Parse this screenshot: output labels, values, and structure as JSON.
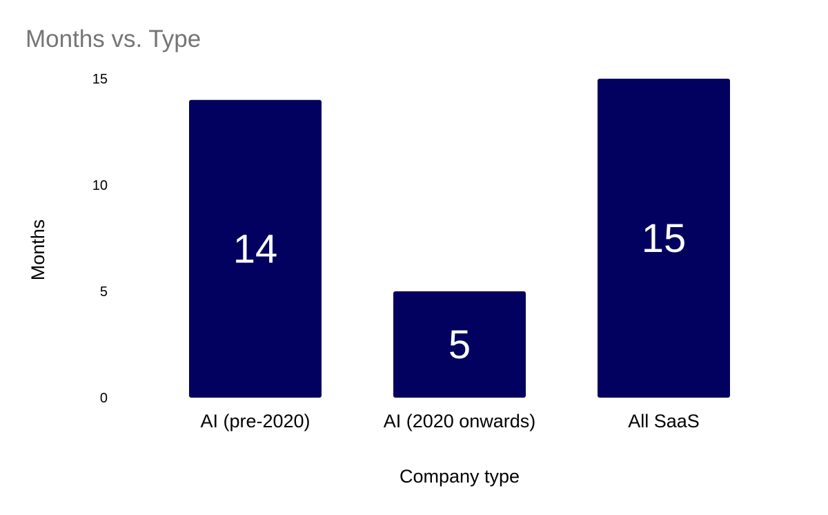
{
  "chart_data": {
    "type": "bar",
    "title": "Months vs. Type",
    "xlabel": "Company type",
    "ylabel": "Months",
    "categories": [
      "AI (pre-2020)",
      "AI (2020 onwards)",
      "All SaaS"
    ],
    "values": [
      14,
      5,
      15
    ],
    "data_labels": [
      "14",
      "5",
      "15"
    ],
    "y_ticks": [
      "0",
      "5",
      "10",
      "15"
    ],
    "y_tick_values": [
      0,
      5,
      10,
      15
    ],
    "ylim": [
      0,
      15
    ],
    "grid": false,
    "legend": "none",
    "colors": {
      "bar": "#020160",
      "data_label": "#ffffff",
      "title": "#757575",
      "axis_text": "#000000"
    }
  }
}
